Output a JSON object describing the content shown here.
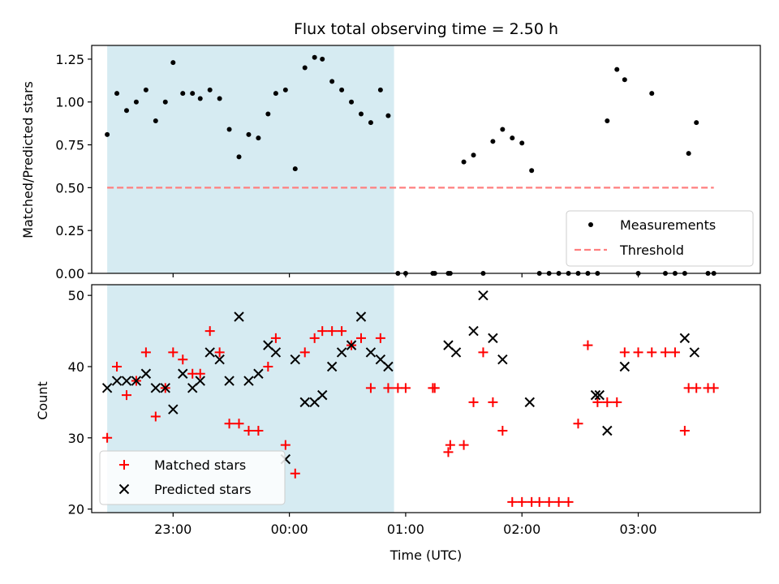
{
  "chart_data": [
    {
      "type": "scatter",
      "title": "Flux total observing time = 2.50 h",
      "xlabel": "",
      "ylabel": "Matched/Predicted stars",
      "ylim": [
        0,
        1.33
      ],
      "yticks": [
        "0.00",
        "0.25",
        "0.50",
        "0.75",
        "1.00",
        "1.25"
      ],
      "grid": false,
      "legend_position": "lower-right",
      "shaded_region": {
        "x_start": "22:26",
        "x_end": "00:54",
        "color": "#add8e6"
      },
      "series": [
        {
          "name": "Measurements",
          "marker": "dot",
          "color": "#000000",
          "x": [
            "22:26",
            "22:31",
            "22:36",
            "22:41",
            "22:46",
            "22:51",
            "22:56",
            "23:00",
            "23:05",
            "23:10",
            "23:14",
            "23:19",
            "23:24",
            "23:29",
            "23:34",
            "23:39",
            "23:44",
            "23:49",
            "23:53",
            "23:58",
            "00:03",
            "00:08",
            "00:13",
            "00:17",
            "00:22",
            "00:27",
            "00:32",
            "00:37",
            "00:42",
            "00:47",
            "00:51",
            "00:56",
            "01:00",
            "01:14",
            "01:15",
            "01:22",
            "01:23",
            "01:30",
            "01:35",
            "01:40",
            "01:45",
            "01:50",
            "01:55",
            "02:00",
            "02:05",
            "02:09",
            "02:14",
            "02:19",
            "02:24",
            "02:29",
            "02:34",
            "02:39",
            "02:44",
            "02:49",
            "02:53",
            "03:00",
            "03:07",
            "03:14",
            "03:19",
            "03:24",
            "03:26",
            "03:30",
            "03:36",
            "03:39"
          ],
          "y": [
            0.81,
            1.05,
            0.95,
            1.0,
            1.07,
            0.89,
            1.0,
            1.23,
            1.05,
            1.05,
            1.02,
            1.07,
            1.02,
            0.84,
            0.68,
            0.81,
            0.79,
            0.93,
            1.05,
            1.07,
            0.61,
            1.2,
            1.26,
            1.25,
            1.12,
            1.07,
            1.0,
            0.93,
            0.88,
            1.07,
            0.92,
            0.0,
            0.0,
            0.0,
            0.0,
            0.0,
            0.0,
            0.65,
            0.69,
            0.0,
            0.77,
            0.84,
            0.79,
            0.76,
            0.6,
            0.0,
            0.0,
            0.0,
            0.0,
            0.0,
            0.0,
            0.0,
            0.89,
            1.19,
            1.13,
            0.0,
            1.05,
            0.0,
            0.0,
            0.0,
            0.7,
            0.88,
            0.0,
            0.0
          ]
        },
        {
          "name": "Threshold",
          "style": "dashed",
          "color": "#ff7f7f",
          "x": [
            "22:26",
            "03:39"
          ],
          "y": [
            0.5,
            0.5
          ]
        }
      ]
    },
    {
      "type": "scatter",
      "title": "",
      "xlabel": "Time (UTC)",
      "ylabel": "Count",
      "ylim": [
        19.5,
        51.5
      ],
      "yticks": [
        "20",
        "30",
        "40",
        "50"
      ],
      "xticks": [
        "23:00",
        "00:00",
        "01:00",
        "02:00",
        "03:00"
      ],
      "grid": false,
      "legend_position": "lower-left",
      "shaded_region": {
        "x_start": "22:26",
        "x_end": "00:54",
        "color": "#add8e6"
      },
      "series": [
        {
          "name": "Matched stars",
          "marker": "plus",
          "color": "#ff0000",
          "x": [
            "22:26",
            "22:31",
            "22:36",
            "22:41",
            "22:46",
            "22:51",
            "22:56",
            "23:00",
            "23:05",
            "23:10",
            "23:14",
            "23:19",
            "23:24",
            "23:29",
            "23:34",
            "23:39",
            "23:44",
            "23:49",
            "23:53",
            "23:58",
            "00:03",
            "00:08",
            "00:13",
            "00:17",
            "00:22",
            "00:27",
            "00:32",
            "00:37",
            "00:42",
            "00:47",
            "00:51",
            "00:56",
            "01:00",
            "01:14",
            "01:15",
            "01:22",
            "01:23",
            "01:30",
            "01:35",
            "01:40",
            "01:45",
            "01:50",
            "01:55",
            "02:00",
            "02:05",
            "02:09",
            "02:14",
            "02:19",
            "02:24",
            "02:29",
            "02:34",
            "02:39",
            "02:44",
            "02:49",
            "02:53",
            "03:00",
            "03:07",
            "03:14",
            "03:19",
            "03:24",
            "03:26",
            "03:30",
            "03:36",
            "03:39"
          ],
          "y": [
            30,
            40,
            36,
            38,
            42,
            33,
            37,
            42,
            41,
            39,
            39,
            45,
            42,
            32,
            32,
            31,
            31,
            40,
            44,
            29,
            25,
            42,
            44,
            45,
            45,
            45,
            43,
            44,
            37,
            44,
            37,
            37,
            37,
            37,
            37,
            28,
            29,
            29,
            35,
            42,
            35,
            31,
            21,
            21,
            21,
            21,
            21,
            21,
            21,
            32,
            43,
            35,
            35,
            35,
            42,
            42,
            42,
            42,
            42,
            31,
            37,
            37,
            37,
            37
          ]
        },
        {
          "name": "Predicted stars",
          "marker": "x",
          "color": "#000000",
          "x": [
            "22:26",
            "22:31",
            "22:36",
            "22:41",
            "22:46",
            "22:51",
            "22:56",
            "23:00",
            "23:05",
            "23:10",
            "23:14",
            "23:19",
            "23:24",
            "23:29",
            "23:34",
            "23:39",
            "23:44",
            "23:49",
            "23:53",
            "23:58",
            "00:03",
            "00:08",
            "00:13",
            "00:17",
            "00:22",
            "00:27",
            "00:32",
            "00:37",
            "00:42",
            "00:47",
            "00:51",
            "01:22",
            "01:26",
            "01:35",
            "01:40",
            "01:45",
            "01:50",
            "02:04",
            "02:38",
            "02:40",
            "02:44",
            "02:53",
            "03:24",
            "03:29"
          ],
          "y": [
            37,
            38,
            38,
            38,
            39,
            37,
            37,
            34,
            39,
            37,
            38,
            42,
            41,
            38,
            47,
            38,
            39,
            43,
            42,
            27,
            41,
            35,
            35,
            36,
            40,
            42,
            43,
            47,
            42,
            41,
            40,
            43,
            42,
            45,
            50,
            44,
            41,
            35,
            36,
            36,
            31,
            40,
            44,
            42
          ]
        }
      ]
    }
  ]
}
